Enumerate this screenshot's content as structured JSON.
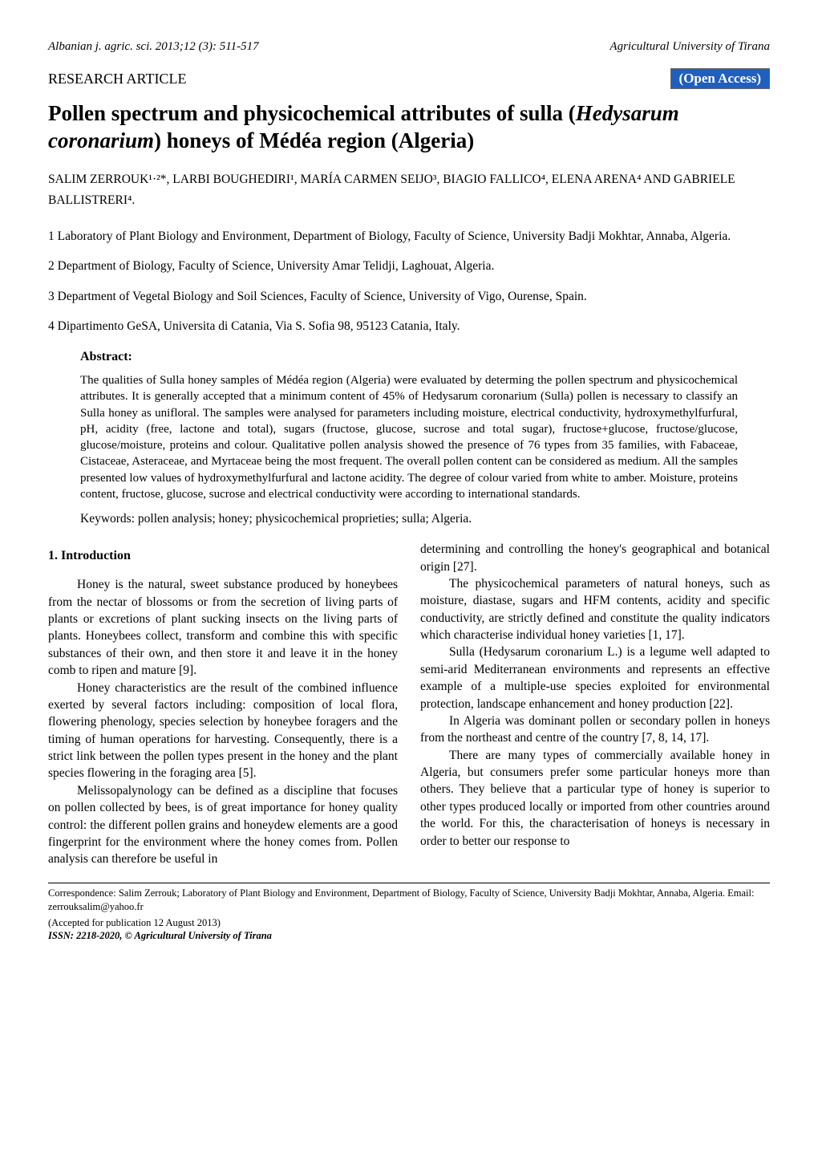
{
  "header": {
    "journal_citation": "Albanian j. agric. sci. 2013;12 (3): 511-517",
    "publisher": "Agricultural University of Tirana"
  },
  "article_meta": {
    "article_type": "RESEARCH ARTICLE",
    "open_access_label": "(Open Access)",
    "badge_bg_color": "#1f5fbf",
    "badge_text_color": "#ffffff"
  },
  "title": {
    "pre": "Pollen spectrum and physicochemical attributes of sulla (",
    "species": "Hedysarum coronarium",
    "post": ") honeys of Médéa region (Algeria)"
  },
  "authors_line": "SALIM ZERROUK¹·²*, LARBI BOUGHEDIRI¹,  MARÍA CARMEN SEIJO³, BIAGIO FALLICO⁴, ELENA ARENA⁴ AND GABRIELE BALLISTRERI⁴.",
  "affiliations": [
    "1 Laboratory of Plant Biology and Environment, Department of Biology, Faculty of Science, University Badji Mokhtar, Annaba, Algeria.",
    "2 Department of Biology, Faculty of Science, University Amar Telidji, Laghouat, Algeria.",
    "3 Department of Vegetal Biology and Soil Sciences, Faculty of Science, University of Vigo, Ourense, Spain.",
    "4 Dipartimento GeSA, Universita di Catania, Via S. Sofia 98, 95123 Catania, Italy."
  ],
  "abstract": {
    "heading": "Abstract:",
    "body": "The qualities of Sulla honey samples of Médéa region (Algeria) were evaluated by determing the pollen spectrum and physicochemical attributes. It is generally accepted that a minimum content of 45% of Hedysarum coronarium (Sulla) pollen is necessary to classify an Sulla honey as unifloral. The samples were analysed for parameters including moisture, electrical conductivity, hydroxymethylfurfural, pH, acidity (free, lactone and total), sugars (fructose, glucose, sucrose and total sugar), fructose+glucose, fructose/glucose, glucose/moisture, proteins and colour. Qualitative pollen analysis showed the presence of 76 types from 35 families, with Fabaceae, Cistaceae, Asteraceae, and Myrtaceae being the most frequent. The overall pollen content can be considered as medium. All the samples presented low values of hydroxymethylfurfural and lactone acidity. The degree of colour varied from white to amber. Moisture, proteins content, fructose, glucose, sucrose and electrical conductivity were according to international standards.",
    "keywords": "Keywords: pollen analysis; honey; physicochemical proprieties; sulla; Algeria."
  },
  "intro": {
    "heading": "1. Introduction",
    "left_paragraphs": [
      "Honey is the natural, sweet substance produced by honeybees from the nectar of blossoms or from the secretion of living parts of plants or excretions of plant sucking insects on the living parts of plants. Honeybees collect, transform and combine this with specific substances of their own, and then store it and leave it in the honey comb to ripen and mature [9].",
      "Honey characteristics are the result of the combined influence exerted by several factors including: composition of local flora, flowering phenology, species selection by honeybee foragers and the timing of human operations for harvesting. Consequently, there is a strict link between the pollen types present in the honey and the plant species flowering in the foraging area [5].",
      "Melissopalynology can be defined as a discipline that focuses on pollen collected by bees, is of great importance for honey quality control: the different pollen grains and honeydew elements are a good fingerprint for the environment where the honey comes from. Pollen analysis can therefore be useful in"
    ],
    "right_paragraphs": [
      "determining and controlling the honey's geographical and botanical origin [27].",
      "The physicochemical parameters of natural honeys, such as moisture, diastase, sugars and HFM contents, acidity and specific conductivity, are strictly defined and constitute the quality indicators which characterise individual honey varieties [1, 17].",
      "Sulla (Hedysarum coronarium L.) is a legume well adapted to semi-arid Mediterranean environments and represents an effective example of a multiple-use species exploited for environmental protection, landscape enhancement and honey production [22].",
      "In Algeria was dominant pollen or secondary pollen in honeys from the northeast and centre of the country [7, 8, 14, 17].",
      "There are many types of commercially available honey in Algeria, but consumers prefer some particular honeys more than others. They believe that a particular type of honey is superior to other types produced locally or imported from other countries around the world. For this, the characterisation of honeys is necessary in order to better our response to"
    ]
  },
  "footer": {
    "correspondence": "Correspondence: Salim Zerrouk; Laboratory of Plant Biology and Environment, Department of Biology, Faculty of Science, University Badji Mokhtar, Annaba, Algeria. Email: zerrouksalim@yahoo.fr",
    "accepted": " (Accepted for publication 12 August 2013)",
    "issn": "ISSN: 2218-2020, © Agricultural University of Tirana"
  }
}
